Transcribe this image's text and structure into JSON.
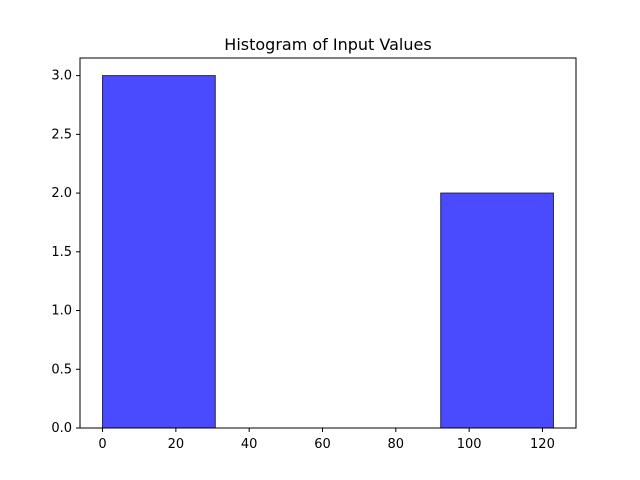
{
  "chart_data": {
    "type": "bar",
    "title": "Histogram of Input Values",
    "xlabel": "",
    "ylabel": "",
    "bins": [
      {
        "x_start": 0,
        "x_end": 30.75,
        "count": 3
      },
      {
        "x_start": 30.75,
        "x_end": 61.5,
        "count": 0
      },
      {
        "x_start": 61.5,
        "x_end": 92.25,
        "count": 0
      },
      {
        "x_start": 92.25,
        "x_end": 123,
        "count": 2
      }
    ],
    "xlim": [
      -6.15,
      129.15
    ],
    "ylim": [
      0,
      3.15
    ],
    "x_ticks": [
      0,
      20,
      40,
      60,
      80,
      100,
      120
    ],
    "y_ticks": [
      0.0,
      0.5,
      1.0,
      1.5,
      2.0,
      2.5,
      3.0
    ],
    "x_tick_labels": [
      "0",
      "20",
      "40",
      "60",
      "80",
      "100",
      "120"
    ],
    "y_tick_labels": [
      "0.0",
      "0.5",
      "1.0",
      "1.5",
      "2.0",
      "2.5",
      "3.0"
    ],
    "grid": false,
    "colors": {
      "bar_fill": "#4a4aff",
      "bar_edge": "#26264d"
    }
  }
}
